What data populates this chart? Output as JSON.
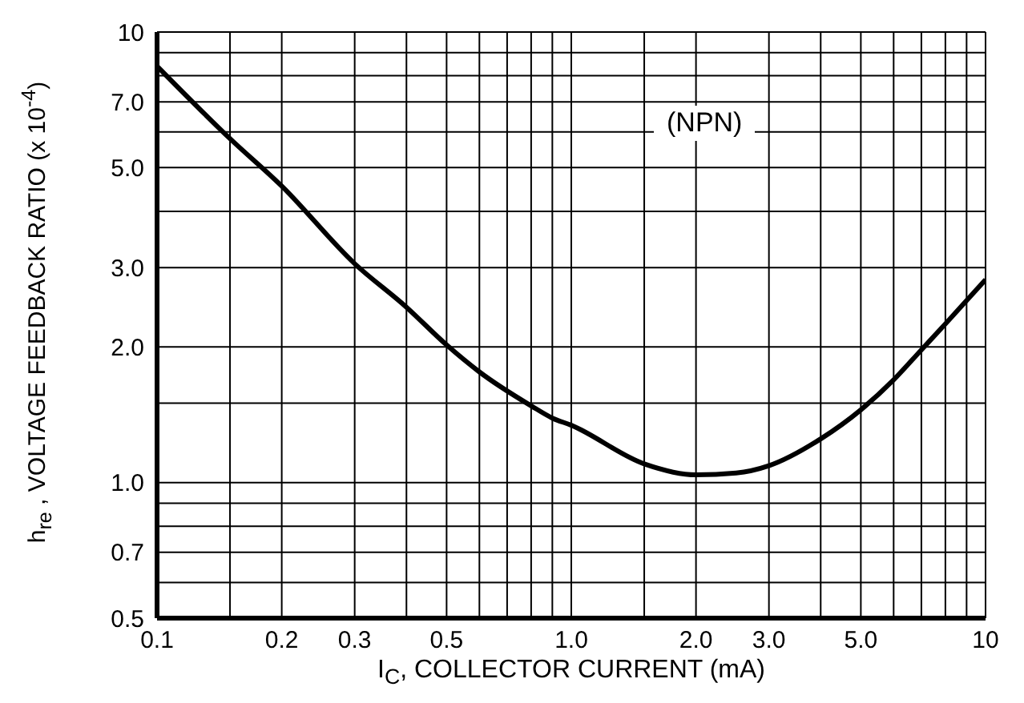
{
  "chart_data": {
    "type": "line",
    "xlabel": "I$_{C}$, COLLECTOR CURRENT (mA)",
    "ylabel": "h$_{re}$ , VOLTAGE FEEDBACK RATIO (x 10$^{-4}$)",
    "annotations": [
      "(NPN)"
    ],
    "log": "xy",
    "grid": true,
    "marker": "none",
    "line_style": "solid",
    "xlim": [
      0.1,
      10
    ],
    "ylim": [
      0.5,
      10
    ],
    "xticks": [
      0.1,
      {
        "value": 0.15,
        "label": null
      },
      0.2,
      0.3,
      {
        "value": 0.4,
        "label": null
      },
      0.5,
      {
        "value": 0.6,
        "label": null
      },
      {
        "value": 0.7,
        "label": null
      },
      {
        "value": 0.8,
        "label": null
      },
      {
        "value": 0.9,
        "label": null
      },
      {
        "value": 1,
        "label": "1.0"
      },
      {
        "value": 1.5,
        "label": null
      },
      {
        "value": 2,
        "label": "2.0"
      },
      {
        "value": 3,
        "label": "3.0"
      },
      {
        "value": 4,
        "label": null
      },
      {
        "value": 5,
        "label": "5.0"
      },
      {
        "value": 6,
        "label": null
      },
      {
        "value": 7,
        "label": null
      },
      {
        "value": 8,
        "label": null
      },
      {
        "value": 9,
        "label": null
      },
      10
    ],
    "yticks": [
      0.5,
      {
        "value": 0.6,
        "label": null
      },
      0.7,
      {
        "value": 0.8,
        "label": null
      },
      {
        "value": 0.9,
        "label": null
      },
      {
        "value": 1,
        "label": "1.0"
      },
      {
        "value": 1.5,
        "label": null
      },
      {
        "value": 2,
        "label": "2.0"
      },
      {
        "value": 3,
        "label": "3.0"
      },
      {
        "value": 4,
        "label": null
      },
      {
        "value": 5,
        "label": "5.0"
      },
      {
        "value": 6,
        "label": null
      },
      {
        "value": 7,
        "label": "7.0"
      },
      {
        "value": 8,
        "label": null
      },
      {
        "value": 9,
        "label": null
      },
      10
    ],
    "x": [
      0.1,
      0.15,
      0.2,
      0.3,
      0.4,
      0.5,
      0.6,
      0.8,
      0.9,
      1.0,
      1.5,
      2.0,
      2.5,
      3.0,
      4.0,
      5.0,
      6.0,
      7.0,
      8.0,
      10
    ],
    "series": [
      {
        "color": "#000000",
        "values": [
          8.4,
          5.8,
          4.55,
          3.06,
          2.45,
          2.02,
          1.76,
          1.48,
          1.39,
          1.34,
          1.1,
          1.04,
          1.05,
          1.09,
          1.25,
          1.45,
          1.69,
          1.97,
          2.25,
          2.82
        ]
      }
    ]
  }
}
